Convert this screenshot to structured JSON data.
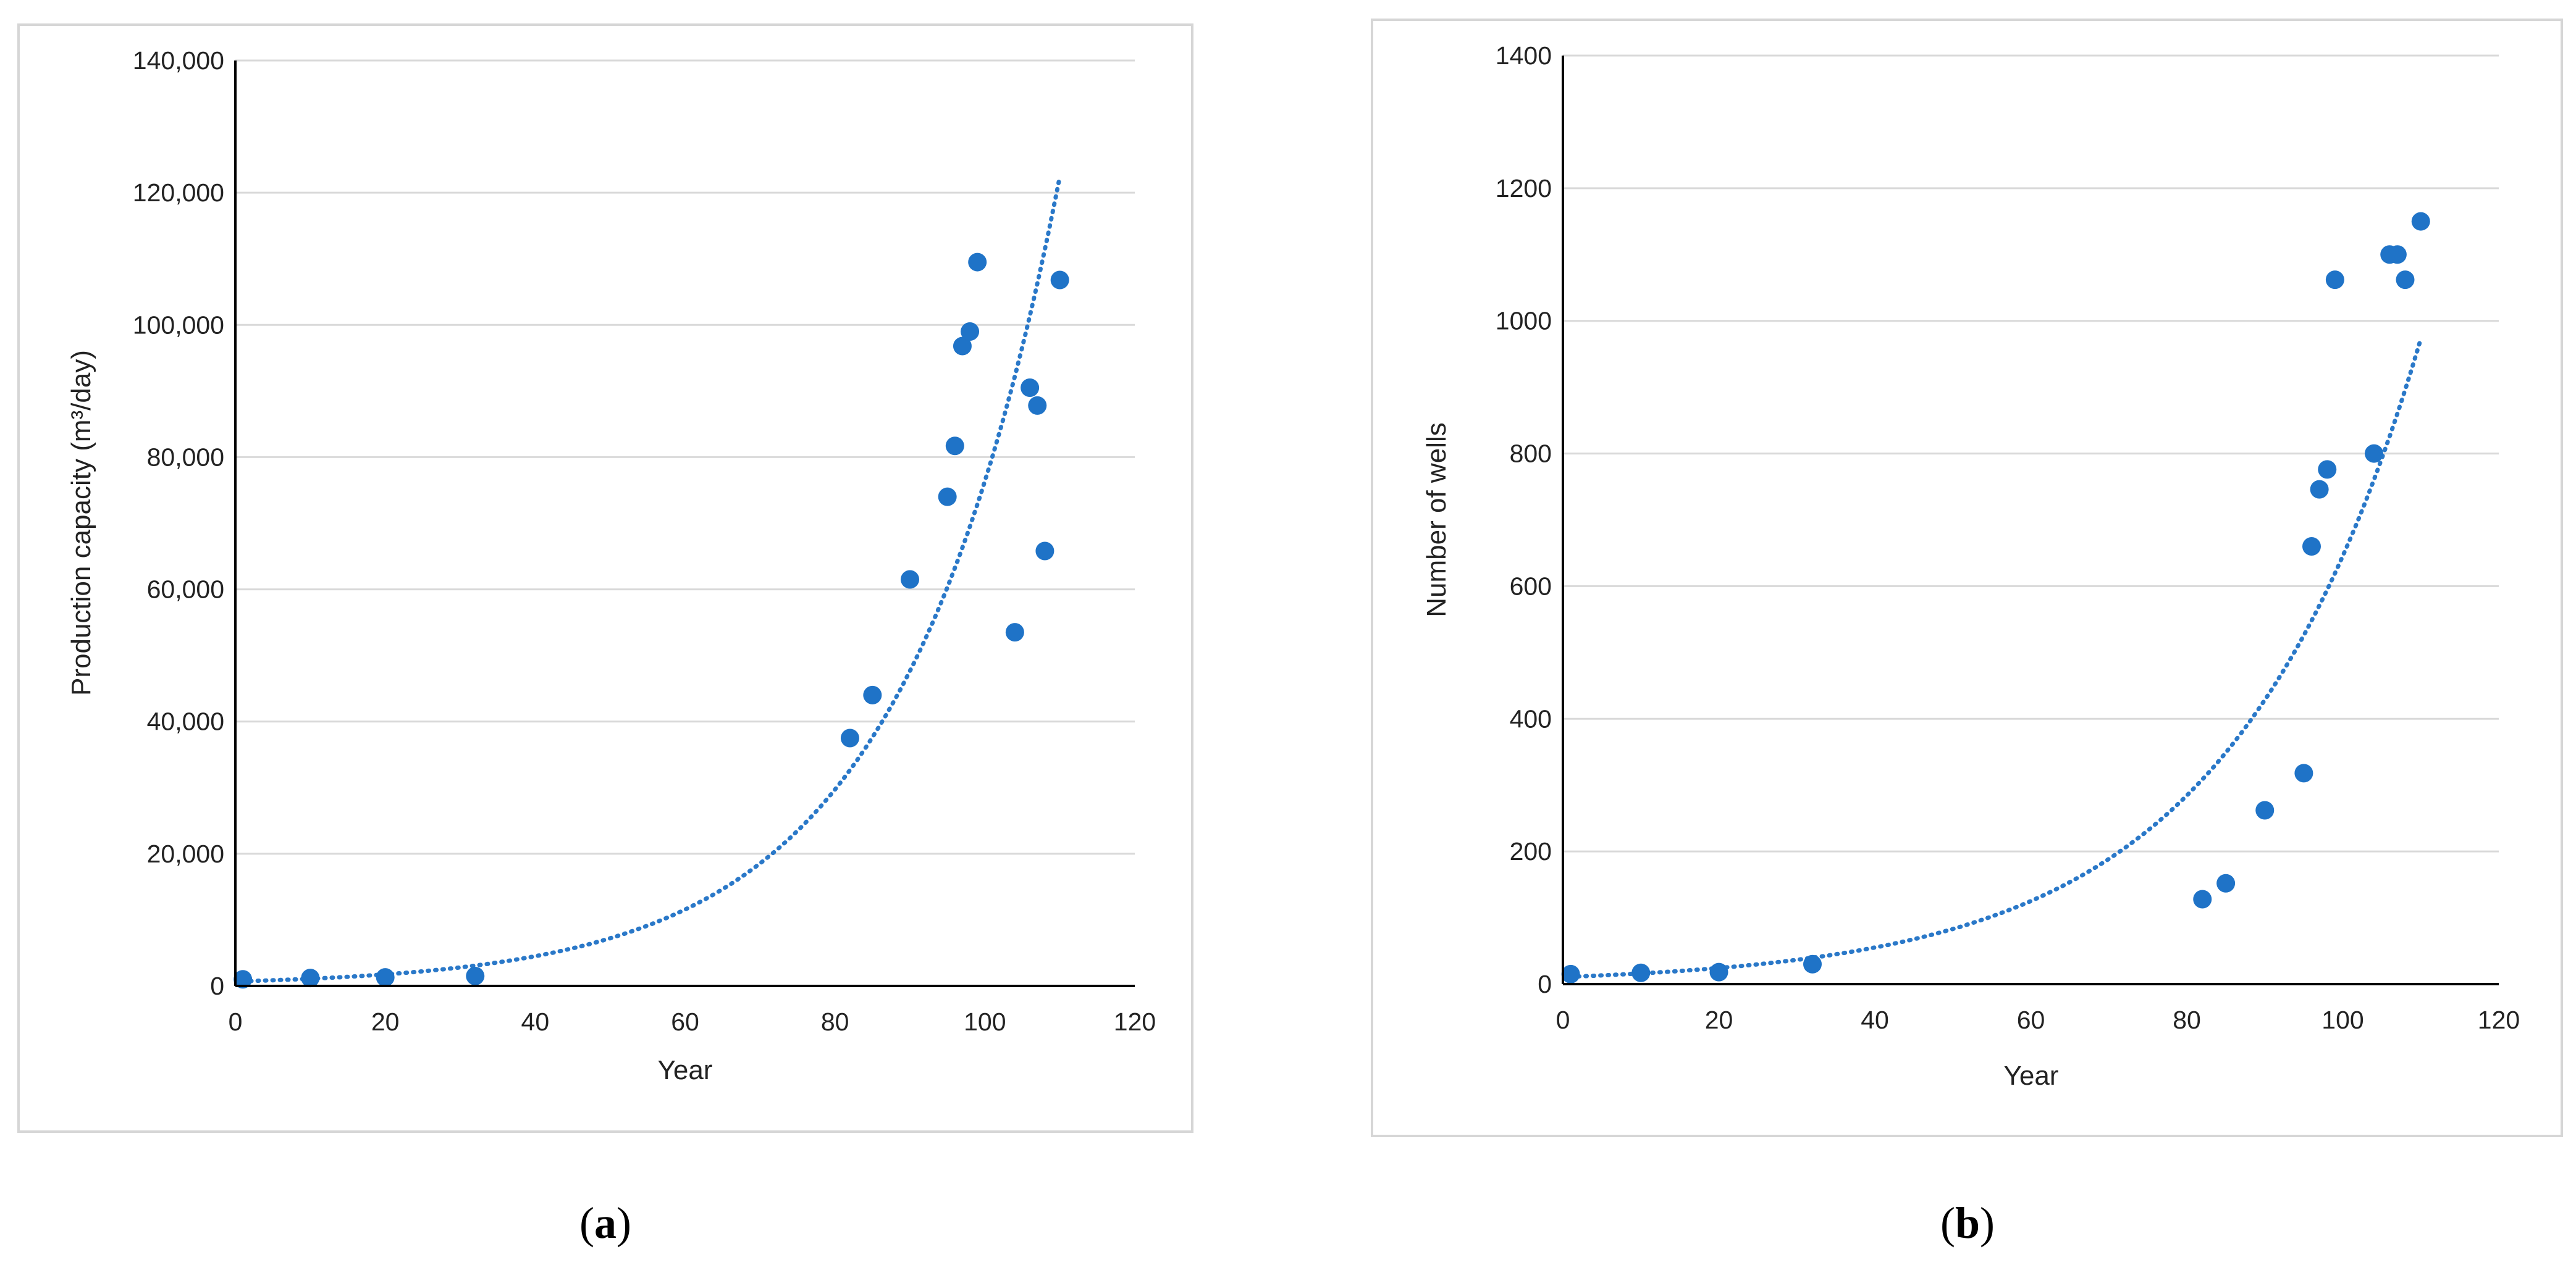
{
  "chart_data": [
    {
      "type": "scatter",
      "panel_label": "a",
      "xlabel": "Year",
      "ylabel": "Production capacity (m³/day)",
      "xlim": [
        0,
        120
      ],
      "ylim": [
        0,
        140000
      ],
      "xticks": [
        0,
        20,
        40,
        60,
        80,
        100,
        120
      ],
      "yticks": [
        0,
        20000,
        40000,
        60000,
        80000,
        100000,
        120000,
        140000
      ],
      "ytick_labels": [
        "0",
        "20,000",
        "40,000",
        "60,000",
        "80,000",
        "100,000",
        "120,000",
        "140,000"
      ],
      "grid": true,
      "marker_color": "#1F73C7",
      "points": {
        "x": [
          1,
          10,
          20,
          32,
          82,
          85,
          90,
          95,
          96,
          97,
          98,
          99,
          104,
          106,
          107,
          108,
          110
        ],
        "y": [
          1000,
          1200,
          1300,
          1500,
          37500,
          44000,
          61500,
          74000,
          81700,
          96800,
          99000,
          109500,
          53500,
          90500,
          87800,
          65800,
          106800
        ]
      },
      "trendline": {
        "type": "exponential",
        "style": "dotted",
        "a": 681,
        "b": 0.0472,
        "x_range": [
          1,
          110
        ]
      }
    },
    {
      "type": "scatter",
      "panel_label": "b",
      "xlabel": "Year",
      "ylabel": "Number of wells",
      "xlim": [
        0,
        120
      ],
      "ylim": [
        0,
        1400
      ],
      "xticks": [
        0,
        20,
        40,
        60,
        80,
        100,
        120
      ],
      "yticks": [
        0,
        200,
        400,
        600,
        800,
        1000,
        1200,
        1400
      ],
      "ytick_labels": [
        "0",
        "200",
        "400",
        "600",
        "800",
        "1000",
        "1200",
        "1400"
      ],
      "grid": true,
      "marker_color": "#1F73C7",
      "points": {
        "x": [
          1,
          10,
          20,
          32,
          82,
          85,
          90,
          95,
          96,
          97,
          98,
          99,
          104,
          106,
          107,
          108,
          110
        ],
        "y": [
          15,
          17,
          18,
          30,
          128,
          152,
          262,
          318,
          660,
          746,
          776,
          1062,
          800,
          1100,
          1100,
          1062,
          1150
        ]
      },
      "trendline": {
        "type": "exponential",
        "style": "dotted",
        "a": 10.7,
        "b": 0.041,
        "x_range": [
          1,
          110
        ]
      }
    }
  ]
}
